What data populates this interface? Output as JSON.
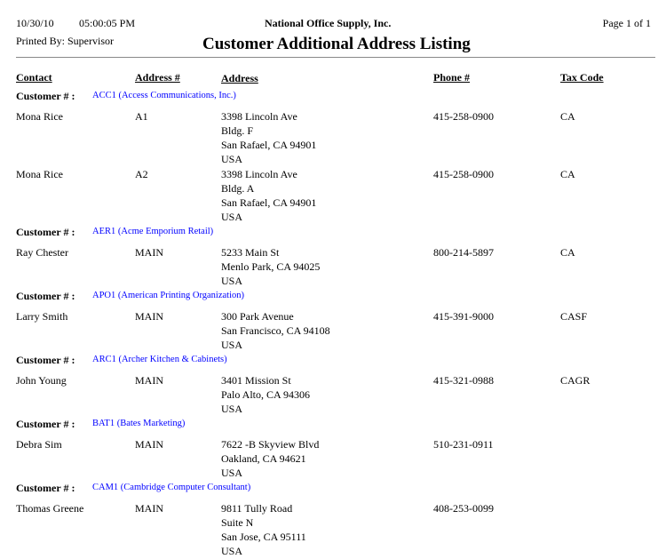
{
  "header": {
    "date": "10/30/10",
    "time": "05:00:05 PM",
    "company": "National Office Supply, Inc.",
    "page": "Page 1 of 1",
    "printed_by": "Printed By: Supervisor",
    "title": "Customer Additional Address Listing"
  },
  "columns": {
    "contact": "Contact",
    "address_no": "Address #",
    "address": "Address",
    "phone": "Phone #",
    "tax_code": "Tax Code"
  },
  "customer_label": "Customer # :",
  "colors": {
    "customer_link": "#0000ff"
  },
  "customers": [
    {
      "name": "ACC1 (Access Communications, Inc.)",
      "records": [
        {
          "contact": "Mona Rice",
          "address_no": "A1",
          "address": [
            "3398  Lincoln Ave",
            "Bldg. F",
            "San Rafael, CA  94901",
            "USA"
          ],
          "phone": "415-258-0900",
          "tax_code": "CA"
        },
        {
          "contact": "Mona Rice",
          "address_no": "A2",
          "address": [
            "3398  Lincoln Ave",
            "Bldg. A",
            "San Rafael, CA  94901",
            "USA"
          ],
          "phone": "415-258-0900",
          "tax_code": "CA"
        }
      ]
    },
    {
      "name": "AER1 (Acme Emporium Retail)",
      "records": [
        {
          "contact": "Ray Chester",
          "address_no": "MAIN",
          "address": [
            "5233  Main St",
            "Menlo Park, CA  94025",
            "USA"
          ],
          "phone": "800-214-5897",
          "tax_code": "CA"
        }
      ]
    },
    {
      "name": "APO1 (American Printing Organization)",
      "records": [
        {
          "contact": "Larry Smith",
          "address_no": "MAIN",
          "address": [
            "300  Park Avenue",
            "San Francisco, CA  94108",
            "USA"
          ],
          "phone": "415-391-9000",
          "tax_code": "CASF"
        }
      ]
    },
    {
      "name": "ARC1 (Archer Kitchen & Cabinets)",
      "records": [
        {
          "contact": "John Young",
          "address_no": "MAIN",
          "address": [
            "3401  Mission St",
            "Palo Alto, CA  94306",
            "USA"
          ],
          "phone": "415-321-0988",
          "tax_code": "CAGR"
        }
      ]
    },
    {
      "name": "BAT1 (Bates Marketing)",
      "records": [
        {
          "contact": "Debra Sim",
          "address_no": "MAIN",
          "address": [
            "7622 -B Skyview Blvd",
            "Oakland, CA  94621",
            "USA"
          ],
          "phone": "510-231-0911",
          "tax_code": ""
        }
      ]
    },
    {
      "name": "CAM1 (Cambridge Computer Consultant)",
      "records": [
        {
          "contact": "Thomas Greene",
          "address_no": "MAIN",
          "address": [
            "9811  Tully Road",
            "Suite N",
            "San Jose, CA  95111",
            "USA"
          ],
          "phone": "408-253-0099",
          "tax_code": ""
        }
      ]
    }
  ]
}
